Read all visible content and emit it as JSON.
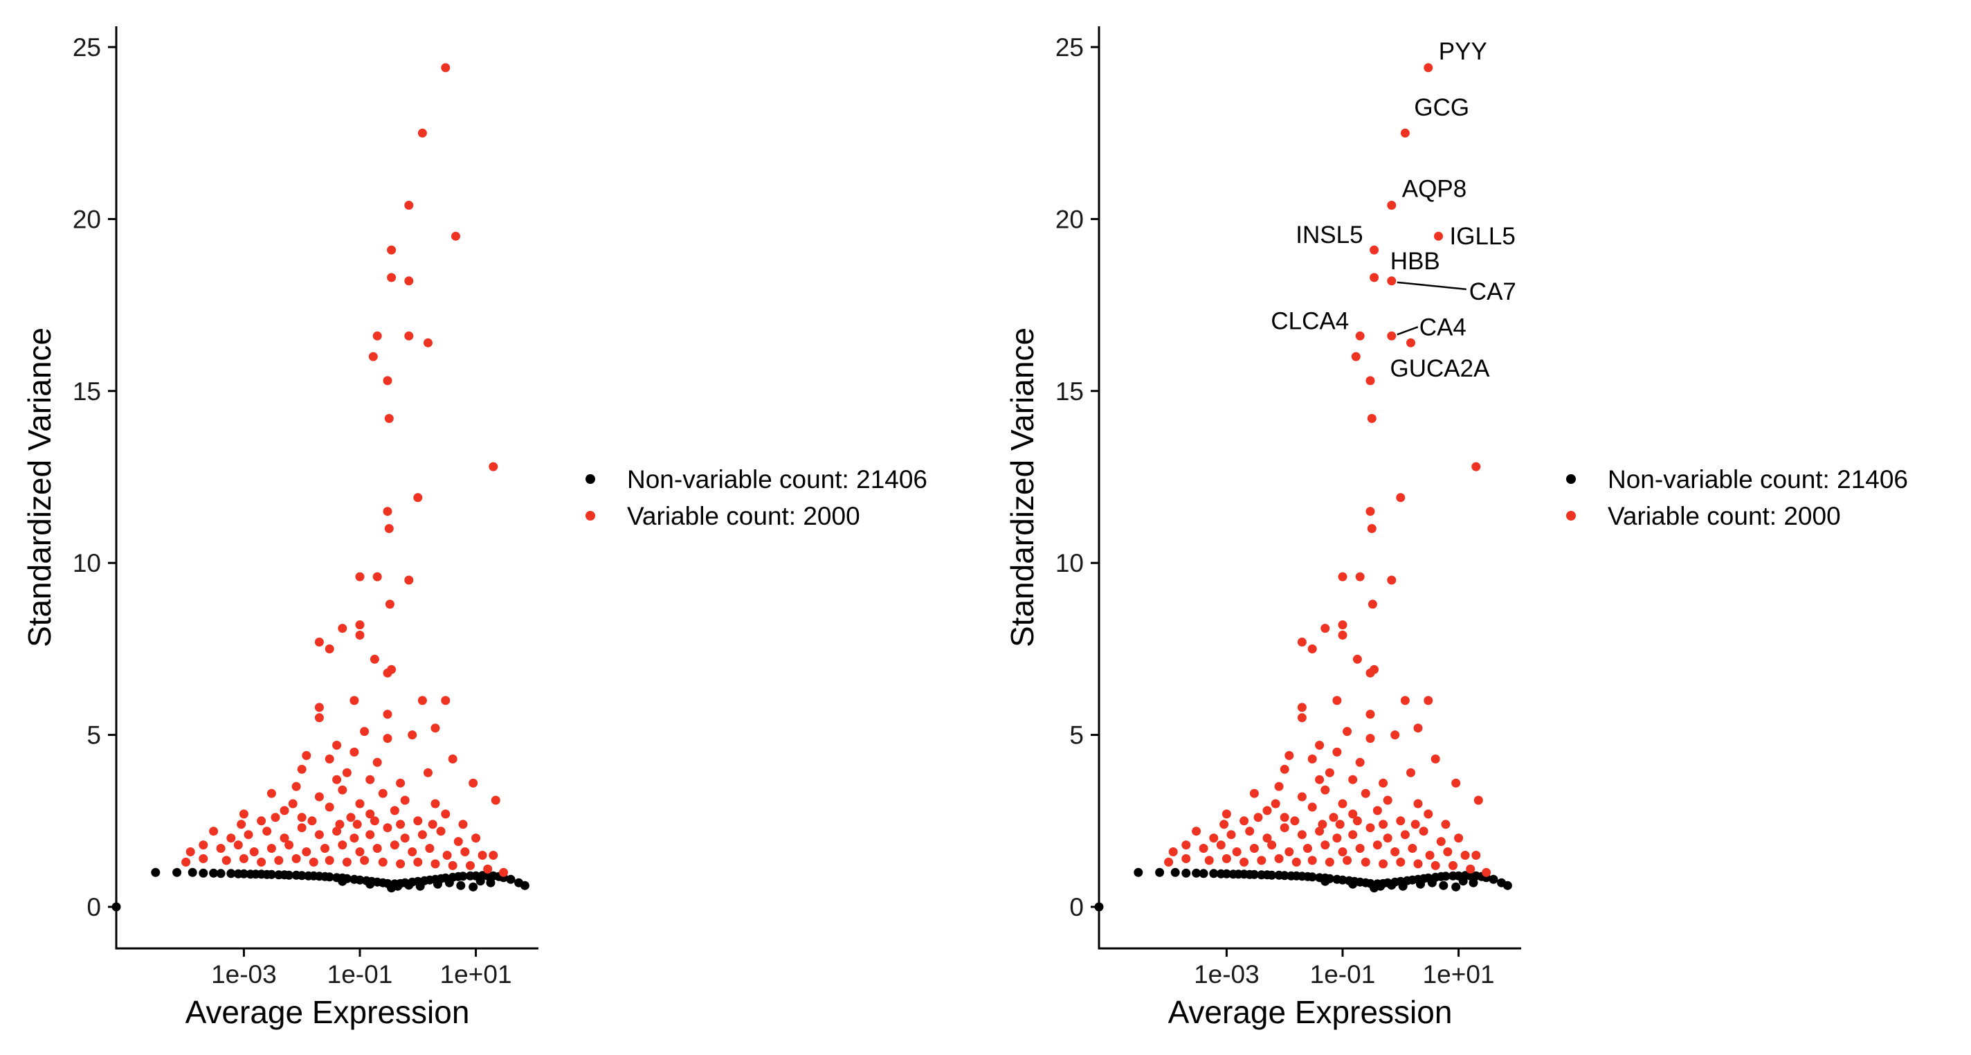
{
  "chart_data": [
    {
      "type": "scatter",
      "xlabel": "Average Expression",
      "ylabel": "Standardized Variance",
      "x_scale": "log10",
      "xlim": [
        6.3e-06,
        120
      ],
      "ylim": [
        -1.2,
        25.6
      ],
      "x_ticks": [
        {
          "value": 0.001,
          "label": "1e-03"
        },
        {
          "value": 0.1,
          "label": "1e-01"
        },
        {
          "value": 10,
          "label": "1e+01"
        }
      ],
      "y_ticks": [
        {
          "value": 0,
          "label": "0"
        },
        {
          "value": 5,
          "label": "5"
        },
        {
          "value": 10,
          "label": "10"
        },
        {
          "value": 15,
          "label": "15"
        },
        {
          "value": 20,
          "label": "20"
        },
        {
          "value": 25,
          "label": "25"
        }
      ],
      "grid": false,
      "legend_position": "right",
      "legend": [
        {
          "label": "Non-variable count: 21406",
          "color": "#000000"
        },
        {
          "label": "Variable count: 2000",
          "color": "#ee3322"
        }
      ],
      "series": [
        {
          "name": "Non-variable count: 21406",
          "color": "#000000",
          "points": [
            [
              6.3e-06,
              0.0
            ],
            [
              3e-05,
              1.0
            ],
            [
              7e-05,
              1.0
            ],
            [
              0.00013,
              1.0
            ],
            [
              0.0002,
              0.98
            ],
            [
              0.0003,
              0.98
            ],
            [
              0.0004,
              0.97
            ],
            [
              0.0006,
              0.97
            ],
            [
              0.0008,
              0.96
            ],
            [
              0.001,
              0.96
            ],
            [
              0.0013,
              0.95
            ],
            [
              0.0016,
              0.95
            ],
            [
              0.002,
              0.95
            ],
            [
              0.0025,
              0.94
            ],
            [
              0.003,
              0.94
            ],
            [
              0.004,
              0.93
            ],
            [
              0.005,
              0.93
            ],
            [
              0.006,
              0.92
            ],
            [
              0.008,
              0.92
            ],
            [
              0.01,
              0.91
            ],
            [
              0.013,
              0.9
            ],
            [
              0.016,
              0.9
            ],
            [
              0.02,
              0.89
            ],
            [
              0.025,
              0.88
            ],
            [
              0.03,
              0.87
            ],
            [
              0.04,
              0.85
            ],
            [
              0.05,
              0.84
            ],
            [
              0.06,
              0.82
            ],
            [
              0.08,
              0.8
            ],
            [
              0.1,
              0.78
            ],
            [
              0.13,
              0.76
            ],
            [
              0.16,
              0.74
            ],
            [
              0.2,
              0.72
            ],
            [
              0.25,
              0.7
            ],
            [
              0.3,
              0.68
            ],
            [
              0.4,
              0.67
            ],
            [
              0.5,
              0.68
            ],
            [
              0.6,
              0.7
            ],
            [
              0.8,
              0.72
            ],
            [
              1.0,
              0.74
            ],
            [
              1.3,
              0.76
            ],
            [
              1.6,
              0.78
            ],
            [
              2.0,
              0.8
            ],
            [
              2.5,
              0.82
            ],
            [
              3.0,
              0.84
            ],
            [
              4.0,
              0.86
            ],
            [
              5.0,
              0.88
            ],
            [
              6.0,
              0.89
            ],
            [
              8.0,
              0.9
            ],
            [
              10.0,
              0.9
            ],
            [
              13.0,
              0.91
            ],
            [
              16.0,
              0.9
            ],
            [
              20.0,
              0.9
            ],
            [
              25.0,
              0.88
            ],
            [
              30.0,
              0.85
            ],
            [
              40.0,
              0.8
            ],
            [
              55.0,
              0.7
            ],
            [
              70.0,
              0.62
            ],
            [
              0.35,
              0.55
            ],
            [
              1.1,
              0.6
            ],
            [
              5.5,
              0.62
            ],
            [
              9.0,
              0.58
            ],
            [
              0.7,
              0.63
            ],
            [
              2.2,
              0.66
            ],
            [
              0.05,
              0.74
            ],
            [
              0.15,
              0.66
            ],
            [
              0.45,
              0.6
            ],
            [
              3.5,
              0.7
            ],
            [
              12.0,
              0.75
            ],
            [
              18.0,
              0.7
            ]
          ]
        },
        {
          "name": "Variable count: 2000",
          "color": "#ee3322",
          "points": [
            [
              3.0,
              24.4
            ],
            [
              1.2,
              22.5
            ],
            [
              0.7,
              20.4
            ],
            [
              4.5,
              19.5
            ],
            [
              0.35,
              19.1
            ],
            [
              0.35,
              18.3
            ],
            [
              0.7,
              18.2
            ],
            [
              0.2,
              16.6
            ],
            [
              0.7,
              16.6
            ],
            [
              1.5,
              16.4
            ],
            [
              0.17,
              16.0
            ],
            [
              0.3,
              15.3
            ],
            [
              0.32,
              14.2
            ],
            [
              20.0,
              12.8
            ],
            [
              1.0,
              11.9
            ],
            [
              0.3,
              11.5
            ],
            [
              0.32,
              11.0
            ],
            [
              0.1,
              9.6
            ],
            [
              0.2,
              9.6
            ],
            [
              0.7,
              9.5
            ],
            [
              0.05,
              8.1
            ],
            [
              0.1,
              8.2
            ],
            [
              0.33,
              8.8
            ],
            [
              0.1,
              7.9
            ],
            [
              0.18,
              7.2
            ],
            [
              0.35,
              6.9
            ],
            [
              0.02,
              7.7
            ],
            [
              0.03,
              7.5
            ],
            [
              0.3,
              6.8
            ],
            [
              0.02,
              5.8
            ],
            [
              0.08,
              6.0
            ],
            [
              1.2,
              6.0
            ],
            [
              3.0,
              6.0
            ],
            [
              0.02,
              5.5
            ],
            [
              0.12,
              5.1
            ],
            [
              0.3,
              5.6
            ],
            [
              0.8,
              5.0
            ],
            [
              2.0,
              5.2
            ],
            [
              0.04,
              4.7
            ],
            [
              0.08,
              4.5
            ],
            [
              0.3,
              4.9
            ],
            [
              4.0,
              4.3
            ],
            [
              0.01,
              4.0
            ],
            [
              0.03,
              4.3
            ],
            [
              0.06,
              3.9
            ],
            [
              0.15,
              3.7
            ],
            [
              0.5,
              3.6
            ],
            [
              1.5,
              3.9
            ],
            [
              0.003,
              3.3
            ],
            [
              0.008,
              3.5
            ],
            [
              0.02,
              3.2
            ],
            [
              0.05,
              3.4
            ],
            [
              0.1,
              3.0
            ],
            [
              0.25,
              3.3
            ],
            [
              0.6,
              3.1
            ],
            [
              2.0,
              3.0
            ],
            [
              9.0,
              3.6
            ],
            [
              22.0,
              3.1
            ],
            [
              0.001,
              2.7
            ],
            [
              0.002,
              2.5
            ],
            [
              0.005,
              2.8
            ],
            [
              0.01,
              2.6
            ],
            [
              0.03,
              2.9
            ],
            [
              0.07,
              2.6
            ],
            [
              0.15,
              2.7
            ],
            [
              0.4,
              2.8
            ],
            [
              1.0,
              2.5
            ],
            [
              3.0,
              2.7
            ],
            [
              6.0,
              2.4
            ],
            [
              0.0003,
              2.2
            ],
            [
              0.0006,
              2.0
            ],
            [
              0.0012,
              2.1
            ],
            [
              0.0025,
              2.2
            ],
            [
              0.005,
              2.0
            ],
            [
              0.01,
              2.3
            ],
            [
              0.02,
              2.1
            ],
            [
              0.04,
              2.2
            ],
            [
              0.08,
              2.0
            ],
            [
              0.15,
              2.1
            ],
            [
              0.3,
              2.3
            ],
            [
              0.6,
              2.0
            ],
            [
              1.2,
              2.1
            ],
            [
              2.5,
              2.2
            ],
            [
              5.0,
              1.9
            ],
            [
              10.0,
              2.0
            ],
            [
              0.00012,
              1.6
            ],
            [
              0.0002,
              1.8
            ],
            [
              0.0004,
              1.7
            ],
            [
              0.0008,
              1.8
            ],
            [
              0.0015,
              1.6
            ],
            [
              0.003,
              1.7
            ],
            [
              0.006,
              1.8
            ],
            [
              0.012,
              1.6
            ],
            [
              0.025,
              1.7
            ],
            [
              0.05,
              1.8
            ],
            [
              0.1,
              1.6
            ],
            [
              0.2,
              1.7
            ],
            [
              0.4,
              1.8
            ],
            [
              0.8,
              1.6
            ],
            [
              1.6,
              1.7
            ],
            [
              3.2,
              1.5
            ],
            [
              6.5,
              1.6
            ],
            [
              13.0,
              1.5
            ],
            [
              0.0001,
              1.3
            ],
            [
              0.0002,
              1.4
            ],
            [
              0.0005,
              1.35
            ],
            [
              0.001,
              1.4
            ],
            [
              0.002,
              1.3
            ],
            [
              0.004,
              1.35
            ],
            [
              0.008,
              1.4
            ],
            [
              0.016,
              1.3
            ],
            [
              0.03,
              1.35
            ],
            [
              0.06,
              1.3
            ],
            [
              0.12,
              1.35
            ],
            [
              0.25,
              1.3
            ],
            [
              0.5,
              1.25
            ],
            [
              1.0,
              1.3
            ],
            [
              2.0,
              1.25
            ],
            [
              4.0,
              1.2
            ],
            [
              8.0,
              1.2
            ],
            [
              16.0,
              1.1
            ],
            [
              30.0,
              1.0
            ],
            [
              20.0,
              1.5
            ],
            [
              0.0009,
              2.4
            ],
            [
              0.0035,
              2.6
            ],
            [
              0.015,
              2.5
            ],
            [
              0.045,
              2.4
            ],
            [
              0.09,
              2.4
            ],
            [
              0.18,
              2.5
            ],
            [
              0.5,
              2.4
            ],
            [
              1.8,
              2.4
            ],
            [
              0.007,
              3.0
            ],
            [
              0.04,
              3.7
            ],
            [
              0.2,
              4.2
            ],
            [
              0.012,
              4.4
            ]
          ]
        }
      ]
    },
    {
      "type": "scatter",
      "xlabel": "Average Expression",
      "ylabel": "Standardized Variance",
      "x_scale": "log10",
      "xlim": [
        6.3e-06,
        120
      ],
      "ylim": [
        -1.2,
        25.6
      ],
      "x_ticks": [
        {
          "value": 0.001,
          "label": "1e-03"
        },
        {
          "value": 0.1,
          "label": "1e-01"
        },
        {
          "value": 10,
          "label": "1e+01"
        }
      ],
      "y_ticks": [
        {
          "value": 0,
          "label": "0"
        },
        {
          "value": 5,
          "label": "5"
        },
        {
          "value": 10,
          "label": "10"
        },
        {
          "value": 15,
          "label": "15"
        },
        {
          "value": 20,
          "label": "20"
        },
        {
          "value": 25,
          "label": "25"
        }
      ],
      "grid": false,
      "legend_position": "right",
      "legend": [
        {
          "label": "Non-variable count: 21406",
          "color": "#000000"
        },
        {
          "label": "Variable count: 2000",
          "color": "#ee3322"
        }
      ],
      "annotations": [
        {
          "gene": "PYY",
          "x": 3.0,
          "y": 24.4,
          "position": "upper-right"
        },
        {
          "gene": "GCG",
          "x": 1.2,
          "y": 22.5,
          "position": "above"
        },
        {
          "gene": "AQP8",
          "x": 0.7,
          "y": 20.4,
          "position": "upper-right"
        },
        {
          "gene": "INSL5",
          "x": 0.35,
          "y": 19.1,
          "position": "upper-left"
        },
        {
          "gene": "IGLL5",
          "x": 4.5,
          "y": 19.5,
          "position": "right"
        },
        {
          "gene": "HBB",
          "x": 0.7,
          "y": 18.2,
          "position": "above"
        },
        {
          "gene": "CA7",
          "x": 0.7,
          "y": 18.2,
          "position": "leader-right"
        },
        {
          "gene": "CLCA4",
          "x": 0.2,
          "y": 16.6,
          "position": "upper-left"
        },
        {
          "gene": "CA4",
          "x": 0.7,
          "y": 16.6,
          "position": "leader-right"
        },
        {
          "gene": "GUCA2A",
          "x": 1.5,
          "y": 16.4,
          "position": "below"
        }
      ],
      "series_from": 0
    }
  ]
}
